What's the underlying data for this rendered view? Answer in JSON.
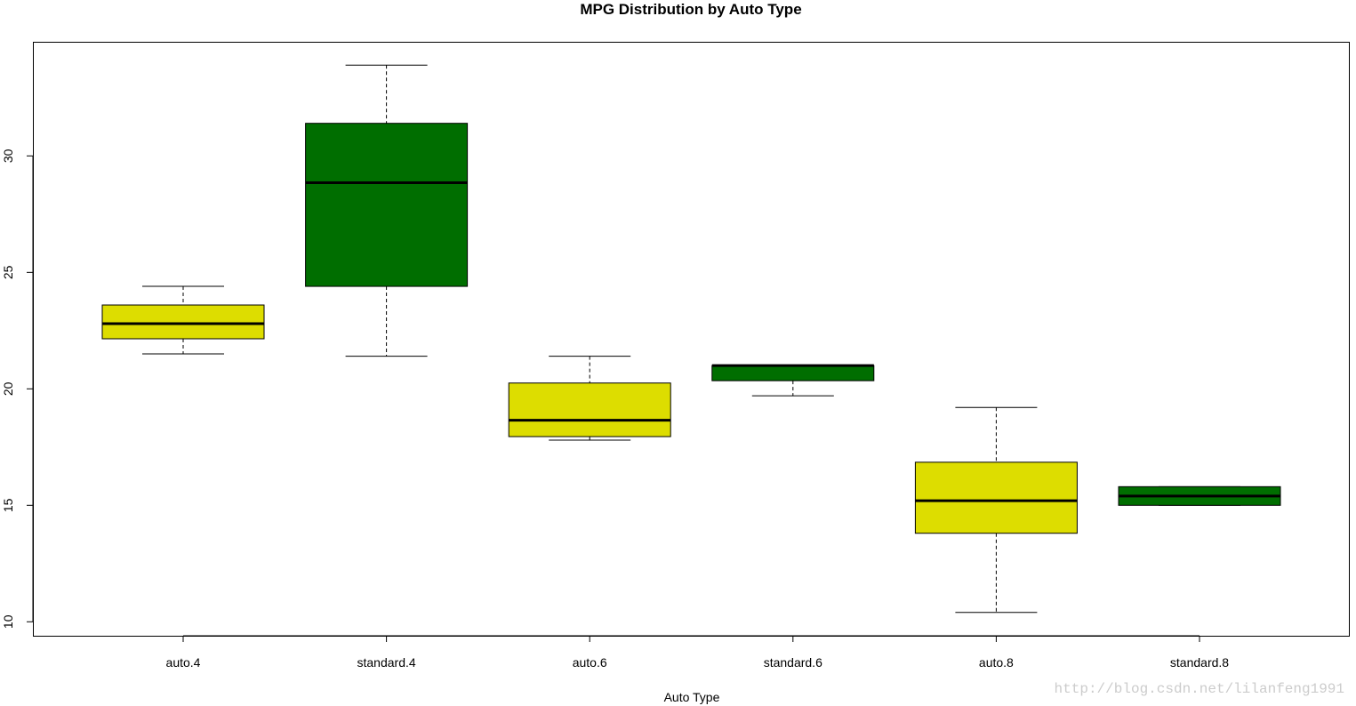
{
  "chart_data": {
    "type": "boxplot",
    "title": "MPG Distribution by Auto Type",
    "xlabel": "Auto Type",
    "ylabel": "",
    "ylim": [
      9.4,
      34.9
    ],
    "yticks": [
      10,
      15,
      20,
      25,
      30
    ],
    "grid": false,
    "legend": "none",
    "categories": [
      "auto.4",
      "standard.4",
      "auto.6",
      "standard.6",
      "auto.8",
      "standard.8"
    ],
    "boxes": [
      {
        "category": "auto.4",
        "min": 21.5,
        "q1": 22.15,
        "median": 22.8,
        "q3": 23.6,
        "max": 24.4,
        "color": "#dddd00"
      },
      {
        "category": "standard.4",
        "min": 21.4,
        "q1": 24.4,
        "median": 28.85,
        "q3": 31.4,
        "max": 33.9,
        "color": "#006e00"
      },
      {
        "category": "auto.6",
        "min": 17.8,
        "q1": 17.95,
        "median": 18.65,
        "q3": 20.25,
        "max": 21.4,
        "color": "#dddd00"
      },
      {
        "category": "standard.6",
        "min": 19.7,
        "q1": 20.35,
        "median": 21.0,
        "q3": 21.0,
        "max": 21.0,
        "color": "#006e00"
      },
      {
        "category": "auto.8",
        "min": 10.4,
        "q1": 13.8,
        "median": 15.2,
        "q3": 16.85,
        "max": 19.2,
        "color": "#dddd00"
      },
      {
        "category": "standard.8",
        "min": 15.0,
        "q1": 15.0,
        "median": 15.4,
        "q3": 15.8,
        "max": 15.8,
        "color": "#006e00"
      }
    ]
  },
  "watermark": "http://blog.csdn.net/lilanfeng1991"
}
